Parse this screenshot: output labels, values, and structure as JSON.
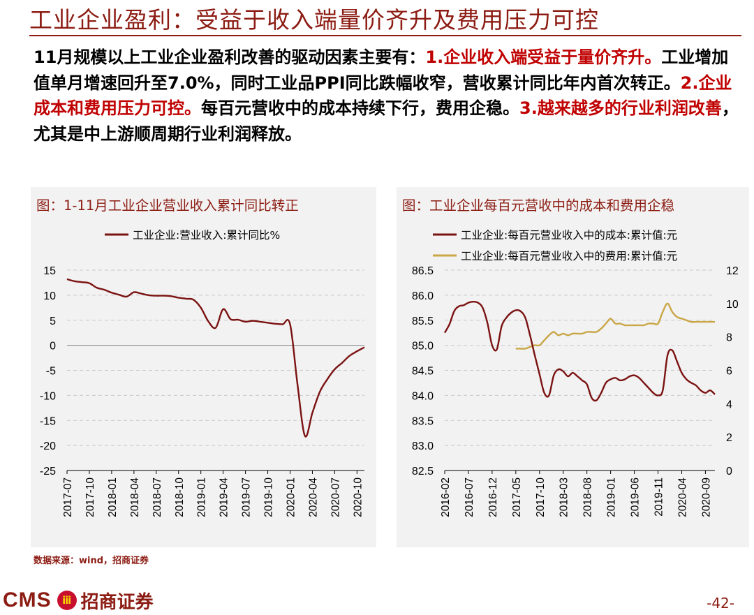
{
  "title": "工业企业盈利：受益于收入端量价齐升及费用压力可控",
  "body": [
    {
      "t": "11月规模以上工业企业盈利改善的驱动因素主要有：",
      "red": false
    },
    {
      "t": "1.企业收入端受益于量价齐升。",
      "red": true
    },
    {
      "t": "工业增加值单月增速回升至7.0%，同时工业品PPI同比跌幅收窄，营收累计同比年内首次转正。",
      "red": false
    },
    {
      "t": "2.企业成本和费用压力可控。",
      "red": true
    },
    {
      "t": "每百元营收中的成本持续下行，费用企稳。",
      "red": false
    },
    {
      "t": "3.越来越多的行业利润改善",
      "red": true
    },
    {
      "t": "，尤其是中上游顺周期行业利润释放。",
      "red": false
    }
  ],
  "left_panel": {
    "title": "图：1-11月工业企业营业收入累计同比转正"
  },
  "right_panel": {
    "title": "图：工业企业每百元营收中的成本和费用企稳"
  },
  "source": "数据来源：wind，招商证券",
  "logo": {
    "latin": "CMS",
    "mark": "ⅲ",
    "cn": "招商证券"
  },
  "page_number": "-42-",
  "colors": {
    "brand": "#8c1c13",
    "series_red": "#7b1212",
    "series_gold": "#c9a646"
  },
  "chart_data": [
    {
      "type": "line",
      "legend": "top-center",
      "grid": true,
      "ylim": [
        -25,
        15
      ],
      "yticks": [
        "15",
        "10",
        "5",
        "0",
        "-5",
        "-10",
        "-15",
        "-20",
        "-25"
      ],
      "xlim": [
        "2017-07",
        "2020-11"
      ],
      "xticks": [
        "2017-07",
        "2017-10",
        "2018-01",
        "2018-04",
        "2018-07",
        "2018-10",
        "2019-01",
        "2019-04",
        "2019-07",
        "2019-10",
        "2020-01",
        "2020-04",
        "2020-07",
        "2020-10"
      ],
      "series": [
        {
          "name": "工业企业:营业收入:累计同比%",
          "color": "#7b1212",
          "x": [
            "2017-07",
            "2017-08",
            "2017-09",
            "2017-10",
            "2017-11",
            "2017-12",
            "2018-01",
            "2018-02",
            "2018-03",
            "2018-04",
            "2018-05",
            "2018-06",
            "2018-07",
            "2018-08",
            "2018-09",
            "2018-10",
            "2018-11",
            "2018-12",
            "2019-01",
            "2019-02",
            "2019-03",
            "2019-04",
            "2019-05",
            "2019-06",
            "2019-07",
            "2019-08",
            "2019-09",
            "2019-10",
            "2019-11",
            "2019-12",
            "2020-01",
            "2020-02",
            "2020-03",
            "2020-04",
            "2020-05",
            "2020-06",
            "2020-07",
            "2020-08",
            "2020-09",
            "2020-10",
            "2020-11"
          ],
          "y": [
            13.2,
            12.8,
            12.6,
            12.4,
            11.5,
            11.1,
            10.5,
            10.1,
            9.7,
            10.6,
            10.3,
            10.0,
            9.9,
            9.9,
            9.8,
            9.5,
            9.3,
            9.1,
            7.5,
            4.8,
            3.5,
            7.2,
            5.2,
            5.1,
            4.7,
            4.9,
            4.7,
            4.5,
            4.3,
            4.2,
            4.2,
            -7.9,
            -18.1,
            -13.5,
            -9.3,
            -6.8,
            -4.8,
            -3.5,
            -2.1,
            -1.2,
            -0.4
          ]
        }
      ]
    },
    {
      "type": "line",
      "legend": "top-center",
      "grid": true,
      "ylim_left": [
        82.5,
        86.5
      ],
      "yticks_left": [
        "86.5",
        "86.0",
        "85.5",
        "85.0",
        "84.5",
        "84.0",
        "83.5",
        "83.0",
        "82.5"
      ],
      "ylim_right": [
        0,
        12
      ],
      "yticks_right": [
        "12",
        "10",
        "8",
        "6",
        "4",
        "2",
        "0"
      ],
      "xlim": [
        "2016-02",
        "2020-11"
      ],
      "xticks": [
        "2016-02",
        "2016-07",
        "2016-12",
        "2017-05",
        "2017-10",
        "2018-03",
        "2018-08",
        "2019-01",
        "2019-06",
        "2019-11",
        "2020-04",
        "2020-09"
      ],
      "series": [
        {
          "name": "工业企业:每百元营业收入中的成本:累计值:元",
          "axis": "left",
          "color": "#7b1212",
          "x": [
            "2016-02",
            "2016-03",
            "2016-04",
            "2016-05",
            "2016-06",
            "2016-07",
            "2016-08",
            "2016-09",
            "2016-10",
            "2016-11",
            "2016-12",
            "2017-01",
            "2017-02",
            "2017-03",
            "2017-04",
            "2017-05",
            "2017-06",
            "2017-07",
            "2017-08",
            "2017-09",
            "2017-10",
            "2017-11",
            "2017-12",
            "2018-01",
            "2018-02",
            "2018-03",
            "2018-04",
            "2018-05",
            "2018-06",
            "2018-07",
            "2018-08",
            "2018-09",
            "2018-10",
            "2018-11",
            "2018-12",
            "2019-01",
            "2019-02",
            "2019-03",
            "2019-04",
            "2019-05",
            "2019-06",
            "2019-07",
            "2019-08",
            "2019-09",
            "2019-10",
            "2019-11",
            "2019-12",
            "2020-01",
            "2020-02",
            "2020-03",
            "2020-04",
            "2020-05",
            "2020-06",
            "2020-07",
            "2020-08",
            "2020-09",
            "2020-10",
            "2020-11"
          ],
          "y": [
            85.25,
            85.42,
            85.68,
            85.78,
            85.8,
            85.85,
            85.87,
            85.85,
            85.75,
            85.45,
            85.0,
            84.92,
            85.38,
            85.55,
            85.65,
            85.7,
            85.68,
            85.55,
            85.2,
            84.8,
            84.42,
            84.05,
            84.0,
            84.4,
            84.52,
            84.48,
            84.38,
            84.45,
            84.38,
            84.3,
            84.22,
            83.95,
            83.9,
            84.05,
            84.25,
            84.32,
            84.35,
            84.3,
            84.32,
            84.38,
            84.4,
            84.35,
            84.25,
            84.15,
            84.05,
            84.0,
            84.1,
            84.8,
            84.9,
            84.68,
            84.45,
            84.32,
            84.25,
            84.2,
            84.1,
            84.05,
            84.1,
            84.02
          ]
        },
        {
          "name": "工业企业:每百元营业收入中的费用:累计值:元",
          "axis": "right",
          "color": "#c9a646",
          "x": [
            "2017-05",
            "2017-06",
            "2017-07",
            "2017-08",
            "2017-09",
            "2017-10",
            "2017-11",
            "2017-12",
            "2018-01",
            "2018-02",
            "2018-03",
            "2018-04",
            "2018-05",
            "2018-06",
            "2018-07",
            "2018-08",
            "2018-09",
            "2018-10",
            "2018-11",
            "2018-12",
            "2019-01",
            "2019-02",
            "2019-03",
            "2019-04",
            "2019-05",
            "2019-06",
            "2019-07",
            "2019-08",
            "2019-09",
            "2019-10",
            "2019-11",
            "2019-12",
            "2020-01",
            "2020-02",
            "2020-03",
            "2020-04",
            "2020-05",
            "2020-06",
            "2020-07",
            "2020-08",
            "2020-09",
            "2020-10",
            "2020-11"
          ],
          "y": [
            7.3,
            7.3,
            7.3,
            7.4,
            7.5,
            7.5,
            7.8,
            8.1,
            8.3,
            8.1,
            8.2,
            8.1,
            8.2,
            8.2,
            8.2,
            8.3,
            8.3,
            8.3,
            8.5,
            8.8,
            9.1,
            8.8,
            8.8,
            8.7,
            8.7,
            8.7,
            8.7,
            8.7,
            8.8,
            8.8,
            8.8,
            9.5,
            10.0,
            9.5,
            9.2,
            9.1,
            9.0,
            8.9,
            8.9,
            8.9,
            8.9,
            8.9,
            8.9
          ]
        }
      ]
    }
  ]
}
